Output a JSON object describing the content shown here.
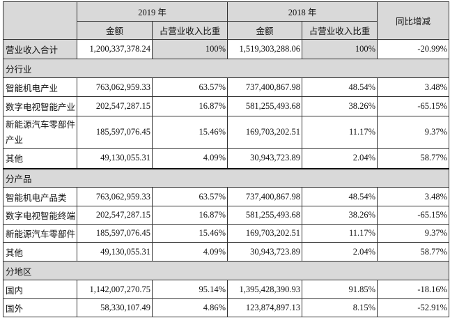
{
  "header": {
    "year1": "2019 年",
    "year2": "2018 年",
    "yoy": "同比增减",
    "amount": "金额",
    "ratio": "占营业收入比重"
  },
  "total": {
    "label": "营业收入合计",
    "v2019": "1,200,337,378.24",
    "r2019": "100%",
    "v2018": "1,519,303,288.06",
    "r2018": "100%",
    "yoy": "-20.99%"
  },
  "sections": [
    {
      "title": "分行业",
      "rows": [
        {
          "label": "智能机电产业",
          "v2019": "763,062,959.33",
          "r2019": "63.57%",
          "v2018": "737,400,867.98",
          "r2018": "48.54%",
          "yoy": "3.48%"
        },
        {
          "label": "数字电视智能产业",
          "v2019": "202,547,287.15",
          "r2019": "16.87%",
          "v2018": "581,255,493.68",
          "r2018": "38.26%",
          "yoy": "-65.15%"
        },
        {
          "label": "新能源汽车零部件产业",
          "v2019": "185,597,076.45",
          "r2019": "15.46%",
          "v2018": "169,703,202.51",
          "r2018": "11.17%",
          "yoy": "9.37%"
        },
        {
          "label": "其他",
          "v2019": "49,130,055.31",
          "r2019": "4.09%",
          "v2018": "30,943,723.89",
          "r2018": "2.04%",
          "yoy": "58.77%"
        }
      ]
    },
    {
      "title": "分产品",
      "rows": [
        {
          "label": "智能机电产品类",
          "v2019": "763,062,959.33",
          "r2019": "63.57%",
          "v2018": "737,400,867.98",
          "r2018": "48.54%",
          "yoy": "3.48%"
        },
        {
          "label": "数字电视智能终端",
          "v2019": "202,547,287.15",
          "r2019": "16.87%",
          "v2018": "581,255,493.68",
          "r2018": "38.26%",
          "yoy": "-65.15%"
        },
        {
          "label": "新能源汽车零部件",
          "v2019": "185,597,076.45",
          "r2019": "15.46%",
          "v2018": "169,703,202.51",
          "r2018": "11.17%",
          "yoy": "9.37%"
        },
        {
          "label": "其他",
          "v2019": "49,130,055.31",
          "r2019": "4.09%",
          "v2018": "30,943,723.89",
          "r2018": "2.04%",
          "yoy": "58.77%"
        }
      ]
    },
    {
      "title": "分地区",
      "rows": [
        {
          "label": "国内",
          "v2019": "1,142,007,270.75",
          "r2019": "95.14%",
          "v2018": "1,395,428,390.93",
          "r2018": "91.85%",
          "yoy": "-18.16%"
        },
        {
          "label": "国外",
          "v2019": "58,330,107.49",
          "r2019": "4.86%",
          "v2018": "123,874,897.13",
          "r2018": "8.15%",
          "yoy": "-52.91%"
        }
      ]
    }
  ]
}
